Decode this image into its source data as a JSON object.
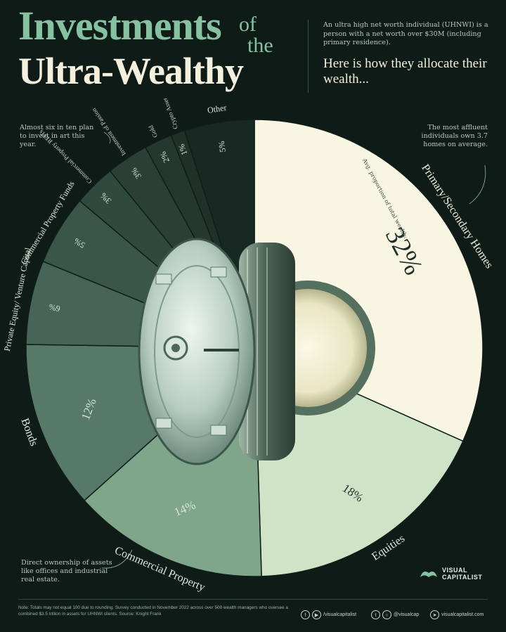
{
  "header": {
    "title_line1": "Investments",
    "title_of": "of",
    "title_the": "the",
    "title_line2": "Ultra-Wealthy",
    "definition": "An ultra high net worth individual (UHNWI) is a person with a net worth over $30M (including primary residence).",
    "lede": "Here is how they allocate their wealth..."
  },
  "notes": {
    "art": "Almost six in ten plan to invest in art this year.",
    "homes": "The most affluent individuals own 3.7 homes on average.",
    "commercial": "Direct ownership of assets like offices and industrial real estate.",
    "avg_label": "Avg. proportion of total wealth:"
  },
  "colors": {
    "background": "#0f1b17",
    "title_green": "#86c2a2",
    "cream": "#f8f6e2"
  },
  "chart_data": {
    "type": "pie",
    "unit": "%",
    "slices": [
      {
        "label": "Primary/Secondary Homes",
        "value": 32,
        "display": "32%",
        "color": "#f8f6e2"
      },
      {
        "label": "Equities",
        "value": 18,
        "display": "18%",
        "color": "#cfe3c6"
      },
      {
        "label": "Commercial Property",
        "value": 14,
        "display": "14%",
        "color": "#7fa68a"
      },
      {
        "label": "Bonds",
        "value": 12,
        "display": "12%",
        "color": "#56796a"
      },
      {
        "label": "Private Equity/ Venture Capital",
        "value": 6,
        "display": "6%",
        "color": "#466558"
      },
      {
        "label": "Commercial Property Funds",
        "value": 5,
        "display": "5%",
        "color": "#3a564a"
      },
      {
        "label": "Commercial Property REITs",
        "value": 3,
        "display": "3%",
        "color": "#30493f"
      },
      {
        "label": "Investment of Passion",
        "value": 3,
        "display": "3%",
        "color": "#2a4037"
      },
      {
        "label": "Gold",
        "value": 2,
        "display": "2%",
        "color": "#243830"
      },
      {
        "label": "Crypto Assets",
        "value": 1,
        "display": "1%",
        "color": "#1f3129"
      },
      {
        "label": "Other",
        "value": 5,
        "display": "5%",
        "color": "#182822"
      }
    ]
  },
  "footer": {
    "note": "Note: Totals may not equal 100 due to rounding. Survey conducted in November 2022 across over 500 wealth managers who oversee a combined $3.5 trillion in assets for UHNWI clients. Source: Knight Frank",
    "social_1": "/visualcapitalist",
    "social_2": "@visualcap",
    "social_3": "visualcapitalist.com",
    "brand_line1": "VISUAL",
    "brand_line2": "CAPITALIST",
    "icon_facebook": "facebook-icon",
    "icon_youtube": "youtube-icon",
    "icon_instagram": "instagram-icon",
    "icon_twitter": "twitter-icon",
    "icon_web": "web-cursor-icon"
  }
}
